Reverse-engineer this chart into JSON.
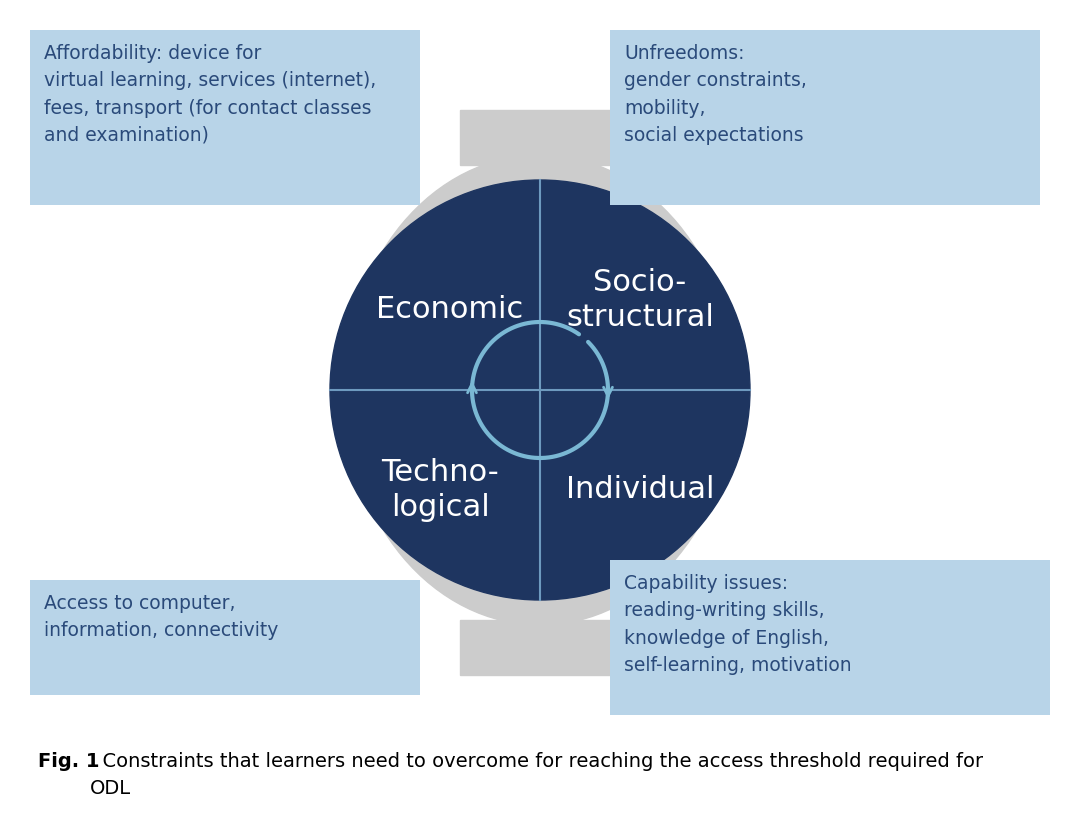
{
  "bg_color": "#ffffff",
  "outer_ellipse_color": "#cccccc",
  "inner_circle_color": "#1e3560",
  "divider_color": "#6e9abf",
  "arc_color": "#7ab8d4",
  "text_color_white": "#ffffff",
  "text_color_dark": "#2a4a7a",
  "box_color": "#b8d4e8",
  "quadrant_labels": [
    "Economic",
    "Socio-\nstructural",
    "Techno-\nlogical",
    "Individual"
  ],
  "box_texts": [
    "Affordability: device for\nvirtual learning, services (internet),\nfees, transport (for contact classes\nand examination)",
    "Unfreedoms:\ngender constraints,\nmobility,\nsocial expectations",
    "Access to computer,\ninformation, connectivity",
    "Capability issues:\nreading-writing skills,\nknowledge of English,\nself-learning, motivation"
  ],
  "caption_bold": "Fig. 1",
  "caption_rest": "  Constraints that learners need to overcome for reaching the access threshold required for\nODL"
}
